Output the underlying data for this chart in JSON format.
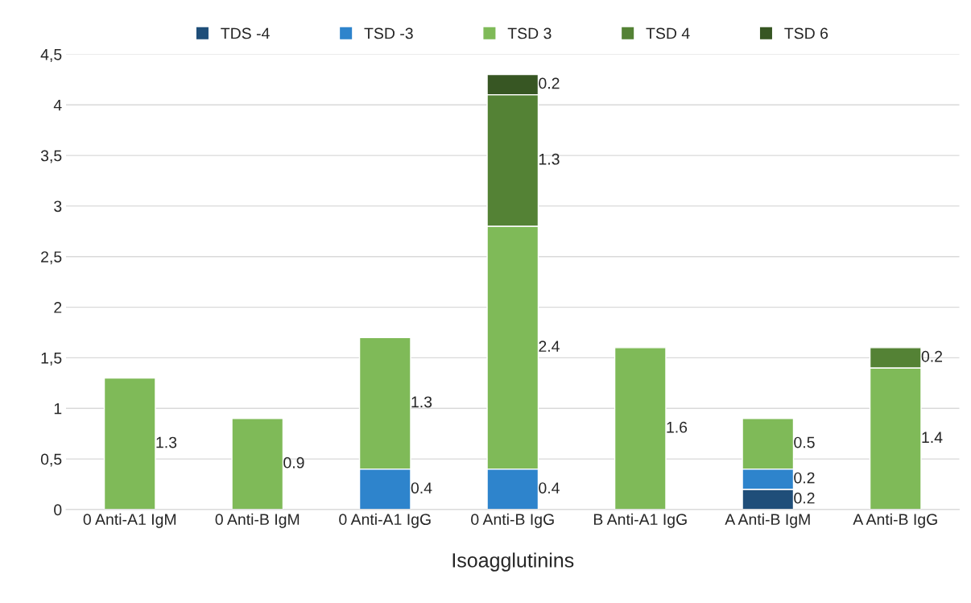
{
  "chart_data": {
    "type": "bar",
    "stacked": true,
    "xlabel": "Isoagglutinins",
    "categories": [
      "0 Anti-A1 IgM",
      "0 Anti-B IgM",
      "0 Anti-A1 IgG",
      "0 Anti-B IgG",
      "B Anti-A1 IgG",
      "A Anti-B IgM",
      "A Anti-B IgG"
    ],
    "series": [
      {
        "name": "TDS -4",
        "color": "#1f4e79",
        "values": [
          null,
          null,
          null,
          null,
          null,
          0.2,
          null
        ]
      },
      {
        "name": "TSD -3",
        "color": "#2e84cc",
        "values": [
          null,
          null,
          0.4,
          0.4,
          null,
          0.2,
          null
        ]
      },
      {
        "name": "TSD 3",
        "color": "#7fba58",
        "values": [
          1.3,
          0.9,
          1.3,
          2.4,
          1.6,
          0.5,
          1.4
        ]
      },
      {
        "name": "TSD 4",
        "color": "#548235",
        "values": [
          null,
          null,
          null,
          1.3,
          null,
          null,
          0.2
        ]
      },
      {
        "name": "TSD 6",
        "color": "#375623",
        "values": [
          null,
          null,
          null,
          0.2,
          null,
          null,
          null
        ]
      }
    ],
    "ylim": [
      0,
      4.5
    ],
    "yticks": [
      0,
      {
        "value": 0.5,
        "label": "0,5"
      },
      1,
      {
        "value": 1.5,
        "label": "1,5"
      },
      2,
      {
        "value": 2.5,
        "label": "2,5"
      },
      3,
      {
        "value": 3.5,
        "label": "3,5"
      },
      4,
      {
        "value": 4.5,
        "label": "4,5"
      }
    ],
    "grid": "y",
    "legend": "top",
    "data_labels": true
  }
}
